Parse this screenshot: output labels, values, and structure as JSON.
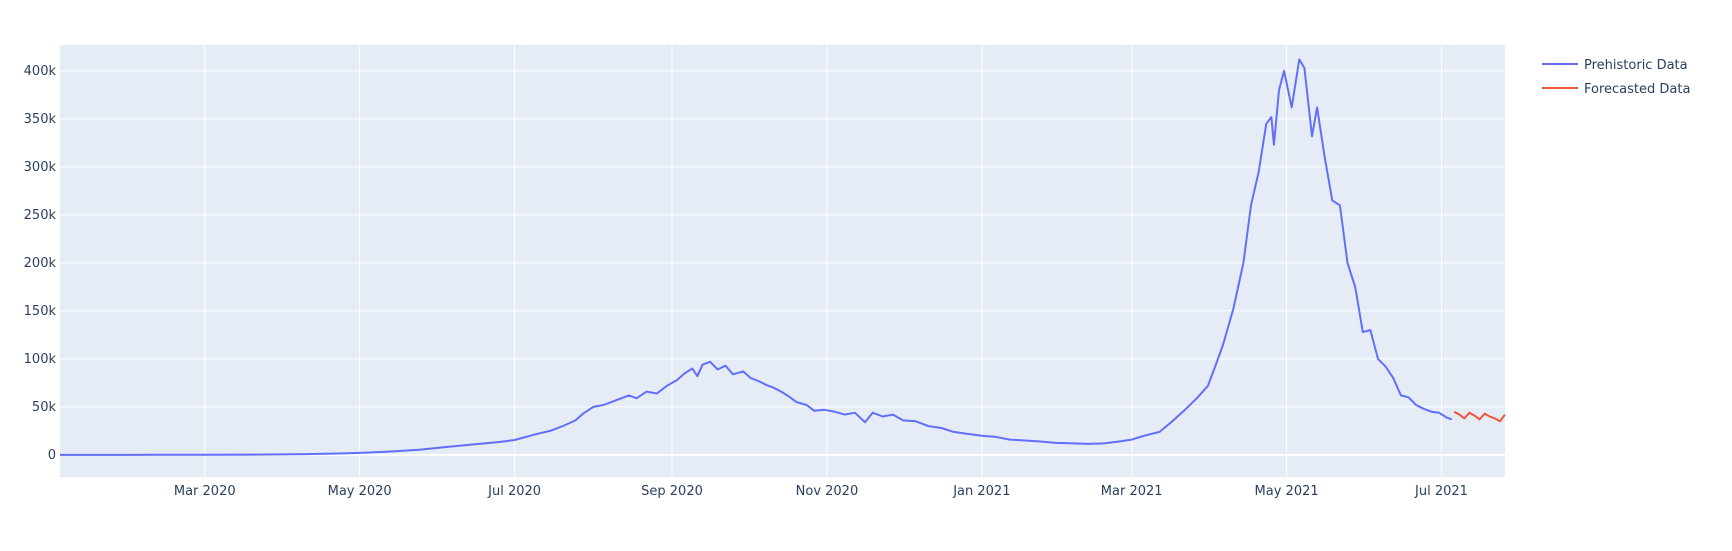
{
  "chart_data": {
    "type": "line",
    "title": "",
    "xlabel": "",
    "ylabel": "",
    "x_axis_type": "date",
    "xlim": [
      "2020-01-04",
      "2021-07-26"
    ],
    "ylim": [
      -23000,
      427000
    ],
    "x_ticks": [
      {
        "date": "2020-03-01",
        "label": "Mar 2020"
      },
      {
        "date": "2020-05-01",
        "label": "May 2020"
      },
      {
        "date": "2020-07-01",
        "label": "Jul 2020"
      },
      {
        "date": "2020-09-01",
        "label": "Sep 2020"
      },
      {
        "date": "2020-11-01",
        "label": "Nov 2020"
      },
      {
        "date": "2021-01-01",
        "label": "Jan 2021"
      },
      {
        "date": "2021-03-01",
        "label": "Mar 2021"
      },
      {
        "date": "2021-05-01",
        "label": "May 2021"
      },
      {
        "date": "2021-07-01",
        "label": "Jul 2021"
      }
    ],
    "y_ticks": [
      {
        "value": 0,
        "label": "0"
      },
      {
        "value": 50000,
        "label": "50k"
      },
      {
        "value": 100000,
        "label": "100k"
      },
      {
        "value": 150000,
        "label": "150k"
      },
      {
        "value": 200000,
        "label": "200k"
      },
      {
        "value": 250000,
        "label": "250k"
      },
      {
        "value": 300000,
        "label": "300k"
      },
      {
        "value": 350000,
        "label": "350k"
      },
      {
        "value": 400000,
        "label": "400k"
      }
    ],
    "grid": true,
    "background": "#e5ecf6",
    "legend_position": "top-right",
    "series": [
      {
        "name": "Prehistoric Data",
        "color": "#636efa",
        "points": [
          [
            "2020-01-04",
            0
          ],
          [
            "2020-01-25",
            0
          ],
          [
            "2020-02-10",
            100
          ],
          [
            "2020-03-01",
            150
          ],
          [
            "2020-03-20",
            300
          ],
          [
            "2020-04-10",
            900
          ],
          [
            "2020-04-25",
            1600
          ],
          [
            "2020-05-05",
            2500
          ],
          [
            "2020-05-15",
            3800
          ],
          [
            "2020-05-25",
            5500
          ],
          [
            "2020-06-05",
            8500
          ],
          [
            "2020-06-15",
            11000
          ],
          [
            "2020-06-25",
            13500
          ],
          [
            "2020-07-01",
            15500
          ],
          [
            "2020-07-10",
            22000
          ],
          [
            "2020-07-15",
            25000
          ],
          [
            "2020-07-20",
            30000
          ],
          [
            "2020-07-25",
            36000
          ],
          [
            "2020-07-28",
            43000
          ],
          [
            "2020-08-01",
            50000
          ],
          [
            "2020-08-05",
            52000
          ],
          [
            "2020-08-10",
            57000
          ],
          [
            "2020-08-15",
            62000
          ],
          [
            "2020-08-18",
            59000
          ],
          [
            "2020-08-22",
            66000
          ],
          [
            "2020-08-26",
            64000
          ],
          [
            "2020-08-30",
            72000
          ],
          [
            "2020-09-03",
            78000
          ],
          [
            "2020-09-06",
            85000
          ],
          [
            "2020-09-09",
            90000
          ],
          [
            "2020-09-11",
            82000
          ],
          [
            "2020-09-13",
            94000
          ],
          [
            "2020-09-16",
            97000
          ],
          [
            "2020-09-19",
            89000
          ],
          [
            "2020-09-22",
            93000
          ],
          [
            "2020-09-25",
            84000
          ],
          [
            "2020-09-29",
            87000
          ],
          [
            "2020-10-02",
            80000
          ],
          [
            "2020-10-05",
            77000
          ],
          [
            "2020-10-08",
            73000
          ],
          [
            "2020-10-11",
            70000
          ],
          [
            "2020-10-14",
            66000
          ],
          [
            "2020-10-17",
            61000
          ],
          [
            "2020-10-20",
            55000
          ],
          [
            "2020-10-24",
            52000
          ],
          [
            "2020-10-27",
            46000
          ],
          [
            "2020-10-31",
            47000
          ],
          [
            "2020-11-04",
            45000
          ],
          [
            "2020-11-08",
            42000
          ],
          [
            "2020-11-12",
            44000
          ],
          [
            "2020-11-16",
            34000
          ],
          [
            "2020-11-19",
            44000
          ],
          [
            "2020-11-23",
            40000
          ],
          [
            "2020-11-27",
            42000
          ],
          [
            "2020-12-01",
            36000
          ],
          [
            "2020-12-06",
            35000
          ],
          [
            "2020-12-11",
            30000
          ],
          [
            "2020-12-16",
            28000
          ],
          [
            "2020-12-21",
            24000
          ],
          [
            "2020-12-26",
            22000
          ],
          [
            "2021-01-01",
            20000
          ],
          [
            "2021-01-06",
            19000
          ],
          [
            "2021-01-12",
            16000
          ],
          [
            "2021-01-18",
            15000
          ],
          [
            "2021-01-24",
            14000
          ],
          [
            "2021-01-30",
            12500
          ],
          [
            "2021-02-06",
            12000
          ],
          [
            "2021-02-12",
            11500
          ],
          [
            "2021-02-18",
            12000
          ],
          [
            "2021-02-24",
            14000
          ],
          [
            "2021-03-01",
            16000
          ],
          [
            "2021-03-06",
            20000
          ],
          [
            "2021-03-12",
            24000
          ],
          [
            "2021-03-17",
            35000
          ],
          [
            "2021-03-22",
            47000
          ],
          [
            "2021-03-27",
            60000
          ],
          [
            "2021-03-31",
            72000
          ],
          [
            "2021-04-03",
            93000
          ],
          [
            "2021-04-06",
            115000
          ],
          [
            "2021-04-10",
            152000
          ],
          [
            "2021-04-14",
            200000
          ],
          [
            "2021-04-17",
            260000
          ],
          [
            "2021-04-20",
            295000
          ],
          [
            "2021-04-23",
            345000
          ],
          [
            "2021-04-25",
            352000
          ],
          [
            "2021-04-26",
            323000
          ],
          [
            "2021-04-28",
            380000
          ],
          [
            "2021-04-30",
            400000
          ],
          [
            "2021-05-03",
            362000
          ],
          [
            "2021-05-06",
            412000
          ],
          [
            "2021-05-08",
            403000
          ],
          [
            "2021-05-11",
            332000
          ],
          [
            "2021-05-13",
            362000
          ],
          [
            "2021-05-16",
            310000
          ],
          [
            "2021-05-19",
            265000
          ],
          [
            "2021-05-22",
            260000
          ],
          [
            "2021-05-25",
            200000
          ],
          [
            "2021-05-28",
            175000
          ],
          [
            "2021-05-31",
            128000
          ],
          [
            "2021-06-03",
            130000
          ],
          [
            "2021-06-06",
            100000
          ],
          [
            "2021-06-09",
            92000
          ],
          [
            "2021-06-12",
            80000
          ],
          [
            "2021-06-15",
            62000
          ],
          [
            "2021-06-18",
            60000
          ],
          [
            "2021-06-21",
            52000
          ],
          [
            "2021-06-24",
            48000
          ],
          [
            "2021-06-27",
            45000
          ],
          [
            "2021-06-30",
            44000
          ],
          [
            "2021-07-03",
            39000
          ],
          [
            "2021-07-05",
            37000
          ]
        ]
      },
      {
        "name": "Forecasted Data",
        "color": "#ef553b",
        "points": [
          [
            "2021-07-06",
            45000
          ],
          [
            "2021-07-08",
            42000
          ],
          [
            "2021-07-10",
            38000
          ],
          [
            "2021-07-12",
            44000
          ],
          [
            "2021-07-14",
            41000
          ],
          [
            "2021-07-16",
            37000
          ],
          [
            "2021-07-18",
            43000
          ],
          [
            "2021-07-20",
            40000
          ],
          [
            "2021-07-22",
            38000
          ],
          [
            "2021-07-24",
            35000
          ],
          [
            "2021-07-26",
            42000
          ]
        ]
      }
    ]
  }
}
